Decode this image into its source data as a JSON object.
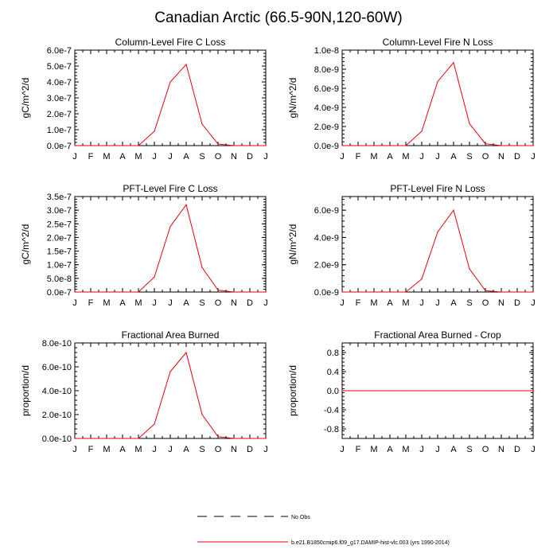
{
  "title": "Canadian Arctic (66.5-90N,120-60W)",
  "colors": {
    "model": "#e8000b",
    "obs": "#000000",
    "axis": "#000000"
  },
  "legend": {
    "obs_label": "No Obs",
    "model_label": "b.e21.B1850cmip6.f09_g17.DAMIP-hist-vlc.003 (yrs 1990-2014)"
  },
  "chart_data": [
    {
      "type": "line",
      "title": "Column-Level Fire C Loss",
      "ylabel": "gC/m^2/d",
      "xlabel": "",
      "categories": [
        "J",
        "F",
        "M",
        "A",
        "M",
        "J",
        "J",
        "A",
        "S",
        "O",
        "N",
        "D",
        "J"
      ],
      "ylim": [
        0,
        6e-07
      ],
      "yticks": [
        0,
        1e-07,
        2e-07,
        3e-07,
        4e-07,
        5e-07,
        6e-07
      ],
      "ytick_labels": [
        "0.0e-7",
        "1.0e-7",
        "2.0e-7",
        "3.0e-7",
        "4.0e-7",
        "5.0e-7",
        "6.0e-7"
      ],
      "series": [
        {
          "name": "b.e21.B1850cmip6.f09_g17.DAMIP-hist-vlc.003 (yrs 1990-2014)",
          "values": [
            0,
            0,
            0,
            0,
            0,
            9e-08,
            4e-07,
            5.1e-07,
            1.35e-07,
            1e-08,
            0,
            0,
            0
          ]
        }
      ]
    },
    {
      "type": "line",
      "title": "Column-Level Fire N Loss",
      "ylabel": "gN/m^2/d",
      "xlabel": "",
      "categories": [
        "J",
        "F",
        "M",
        "A",
        "M",
        "J",
        "J",
        "A",
        "S",
        "O",
        "N",
        "D",
        "J"
      ],
      "ylim": [
        0,
        1e-08
      ],
      "yticks": [
        0,
        2e-09,
        4e-09,
        6e-09,
        8e-09,
        1e-08
      ],
      "ytick_labels": [
        "0.0e-9",
        "2.0e-9",
        "4.0e-9",
        "6.0e-9",
        "8.0e-9",
        "1.0e-8"
      ],
      "series": [
        {
          "name": "b.e21.B1850cmip6.f09_g17.DAMIP-hist-vlc.003 (yrs 1990-2014)",
          "values": [
            0,
            0,
            0,
            0,
            0,
            1.5e-09,
            6.7e-09,
            8.7e-09,
            2.3e-09,
            2e-10,
            0,
            0,
            0
          ]
        }
      ]
    },
    {
      "type": "line",
      "title": "PFT-Level Fire C Loss",
      "ylabel": "gC/m^2/d",
      "xlabel": "",
      "categories": [
        "J",
        "F",
        "M",
        "A",
        "M",
        "J",
        "J",
        "A",
        "S",
        "O",
        "N",
        "D",
        "J"
      ],
      "ylim": [
        0,
        3.5e-07
      ],
      "yticks": [
        0,
        5e-08,
        1e-07,
        1.5e-07,
        2e-07,
        2.5e-07,
        3e-07,
        3.5e-07
      ],
      "ytick_labels": [
        "0.0e-7",
        "5.0e-8",
        "1.0e-7",
        "1.5e-7",
        "2.0e-7",
        "2.5e-7",
        "3.0e-7",
        "3.5e-7"
      ],
      "series": [
        {
          "name": "b.e21.B1850cmip6.f09_g17.DAMIP-hist-vlc.003 (yrs 1990-2014)",
          "values": [
            0,
            0,
            0,
            0,
            0,
            5.5e-08,
            2.4e-07,
            3.2e-07,
            9e-08,
            7e-09,
            0,
            0,
            0
          ]
        }
      ]
    },
    {
      "type": "line",
      "title": "PFT-Level Fire N Loss",
      "ylabel": "gN/m^2/d",
      "xlabel": "",
      "categories": [
        "J",
        "F",
        "M",
        "A",
        "M",
        "J",
        "J",
        "A",
        "S",
        "O",
        "N",
        "D",
        "J"
      ],
      "ylim": [
        0,
        7e-09
      ],
      "yticks": [
        0,
        2e-09,
        4e-09,
        6e-09
      ],
      "ytick_labels": [
        "0.0e-9",
        "2.0e-9",
        "4.0e-9",
        "6.0e-9"
      ],
      "series": [
        {
          "name": "b.e21.B1850cmip6.f09_g17.DAMIP-hist-vlc.003 (yrs 1990-2014)",
          "values": [
            0,
            0,
            0,
            0,
            0,
            9.5e-10,
            4.4e-09,
            6e-09,
            1.7e-09,
            1e-10,
            0,
            0,
            0
          ]
        }
      ]
    },
    {
      "type": "line",
      "title": "Fractional Area Burned",
      "ylabel": "proportion/d",
      "xlabel": "",
      "categories": [
        "J",
        "F",
        "M",
        "A",
        "M",
        "J",
        "J",
        "A",
        "S",
        "O",
        "N",
        "D",
        "J"
      ],
      "ylim": [
        0,
        8e-10
      ],
      "yticks": [
        0,
        2e-10,
        4e-10,
        6e-10,
        8e-10
      ],
      "ytick_labels": [
        "0.0e-10",
        "2.0e-10",
        "4.0e-10",
        "6.0e-10",
        "8.0e-10"
      ],
      "series": [
        {
          "name": "b.e21.B1850cmip6.f09_g17.DAMIP-hist-vlc.003 (yrs 1990-2014)",
          "values": [
            0,
            0,
            0,
            0,
            0,
            1.2e-10,
            5.6e-10,
            7.2e-10,
            2e-10,
            1.5e-11,
            0,
            0,
            0
          ]
        }
      ]
    },
    {
      "type": "line",
      "title": "Fractional Area Burned - Crop",
      "ylabel": "proportion/d",
      "xlabel": "",
      "categories": [
        "J",
        "F",
        "M",
        "A",
        "M",
        "J",
        "J",
        "A",
        "S",
        "O",
        "N",
        "D",
        "J"
      ],
      "ylim": [
        -1.0,
        1.0
      ],
      "yticks": [
        -0.8,
        -0.4,
        0.0,
        0.4,
        0.8
      ],
      "ytick_labels": [
        "-0.8",
        "-0.4",
        "0.0",
        "0.4",
        "0.8"
      ],
      "series": [
        {
          "name": "b.e21.B1850cmip6.f09_g17.DAMIP-hist-vlc.003 (yrs 1990-2014)",
          "values": [
            0,
            0,
            0,
            0,
            0,
            0,
            0,
            0,
            0,
            0,
            0,
            0,
            0
          ]
        }
      ]
    }
  ]
}
